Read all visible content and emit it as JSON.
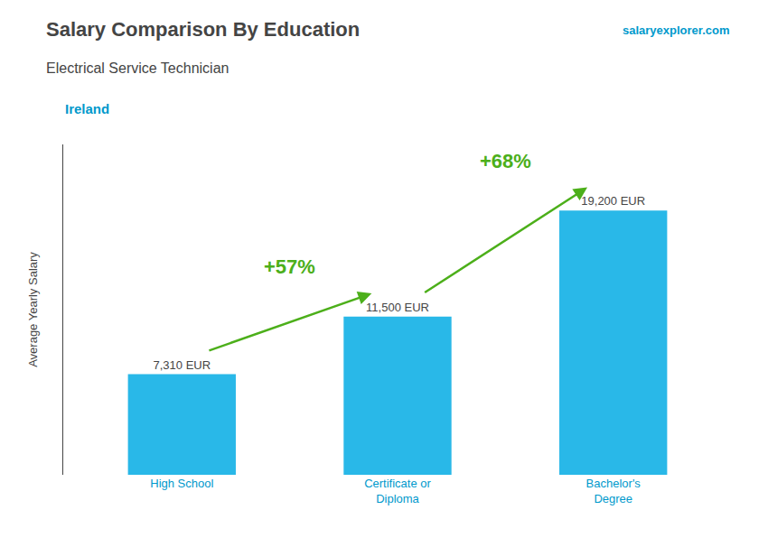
{
  "chart_data": {
    "type": "bar",
    "title": "Salary Comparison By Education",
    "subtitle": "Electrical Service Technician",
    "annotations": [
      "Ireland",
      "salaryexplorer.com"
    ],
    "ylabel": "Average Yearly Salary",
    "categories": [
      "High School",
      "Certificate or\nDiploma",
      "Bachelor's\nDegree"
    ],
    "values": [
      7310,
      11500,
      19200
    ],
    "value_labels": [
      "7,310 EUR",
      "11,500 EUR",
      "19,200 EUR"
    ],
    "data_labels": true,
    "changes": [
      57,
      68
    ],
    "change_labels": [
      "+57%",
      "+68%"
    ],
    "color": "#29b8e8",
    "ylim": [
      0,
      24000
    ],
    "grid": false,
    "tick_labels": "x"
  }
}
